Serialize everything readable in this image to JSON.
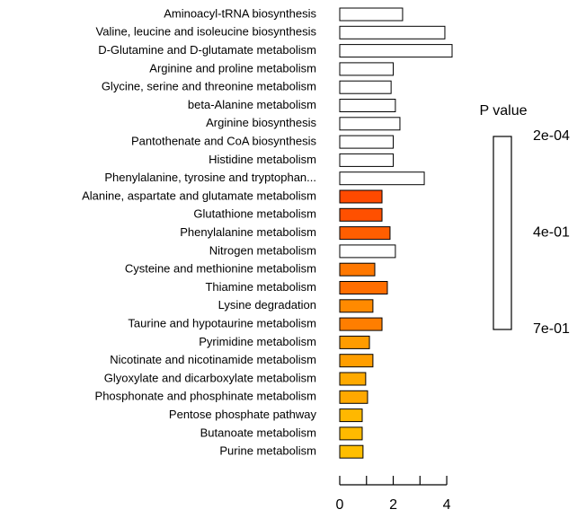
{
  "chart_data": {
    "type": "hbar",
    "categories": [
      "Aminoacyl-tRNA biosynthesis",
      "Valine, leucine and isoleucine biosynthesis",
      "D-Glutamine and D-glutamate metabolism",
      "Arginine and proline metabolism",
      "Glycine, serine and threonine metabolism",
      "beta-Alanine metabolism",
      "Arginine biosynthesis",
      "Pantothenate and CoA biosynthesis",
      "Histidine metabolism",
      "Phenylalanine, tyrosine and tryptophan...",
      "Alanine, aspartate and glutamate metabolism",
      "Glutathione metabolism",
      "Phenylalanine metabolism",
      "Nitrogen metabolism",
      "Cysteine and methionine metabolism",
      "Thiamine metabolism",
      "Lysine degradation",
      "Taurine and hypotaurine metabolism",
      "Pyrimidine metabolism",
      "Nicotinate and nicotinamide metabolism",
      "Glyoxylate and dicarboxylate metabolism",
      "Phosphonate and phosphinate metabolism",
      "Pentose phosphate pathway",
      "Butanoate metabolism",
      "Purine metabolism"
    ],
    "values": [
      2.35,
      3.93,
      4.2,
      2.0,
      1.92,
      2.08,
      2.25,
      2.0,
      2.0,
      3.16,
      1.58,
      1.58,
      1.88,
      2.08,
      1.31,
      1.78,
      1.24,
      1.58,
      1.11,
      1.24,
      0.97,
      1.04,
      0.84,
      0.84,
      0.87
    ],
    "colors": [
      "#ffffff",
      "#ffffff",
      "#ffffff",
      "#ffffff",
      "#ffffff",
      "#ffffff",
      "#ffffff",
      "#ffffff",
      "#ffffff",
      "#ffffff",
      "#ff4a00",
      "#ff5000",
      "#ff5e00",
      "#ffffff",
      "#ff7800",
      "#ff6e00",
      "#ff8a00",
      "#ff7e00",
      "#ff9c00",
      "#ff9e00",
      "#ffaa00",
      "#ffa800",
      "#ffb800",
      "#ffba00",
      "#ffbe00"
    ],
    "xlim": [
      0,
      4.2
    ],
    "xticks": [
      0,
      2,
      4
    ],
    "xminor_ticks": [
      1,
      3
    ],
    "legend": {
      "title": "P value",
      "labels": [
        "2e-04",
        "4e-01",
        "7e-01"
      ]
    }
  }
}
